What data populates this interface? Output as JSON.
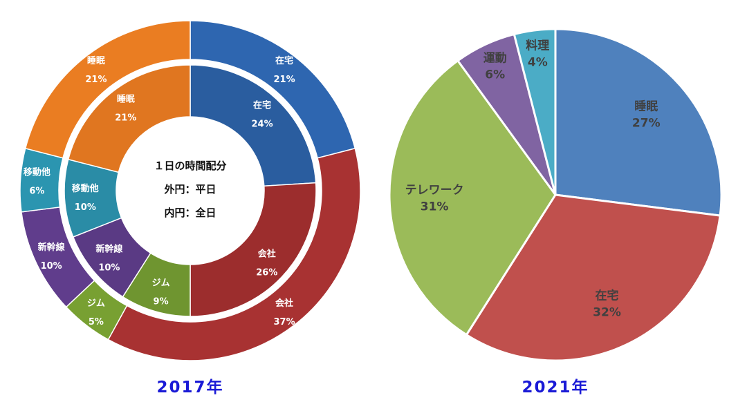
{
  "chart_data": [
    {
      "type": "pie",
      "variant": "nested-donut",
      "title": "2017年",
      "center_text": [
        "１日の時間配分",
        "外円：平日",
        "内円：全日"
      ],
      "rings": [
        {
          "name": "外円：平日",
          "slices": [
            {
              "label": "在宅",
              "value": 21,
              "value_label": "21%",
              "color": "#2e66b0"
            },
            {
              "label": "会社",
              "value": 37,
              "value_label": "37%",
              "color": "#a83232"
            },
            {
              "label": "ジム",
              "value": 5,
              "value_label": "5%",
              "color": "#78a032"
            },
            {
              "label": "新幹線",
              "value": 10,
              "value_label": "10%",
              "color": "#603d8c"
            },
            {
              "label": "移動他",
              "value": 6,
              "value_label": "6%",
              "color": "#2b95b0"
            },
            {
              "label": "睡眠",
              "value": 21,
              "value_label": "21%",
              "color": "#ea7d22"
            }
          ]
        },
        {
          "name": "内円：全日",
          "slices": [
            {
              "label": "在宅",
              "value": 24,
              "value_label": "24%",
              "color": "#2a5d9f"
            },
            {
              "label": "会社",
              "value": 26,
              "value_label": "26%",
              "color": "#9c2d2d"
            },
            {
              "label": "ジム",
              "value": 9,
              "value_label": "9%",
              "color": "#6f9530"
            },
            {
              "label": "新幹線",
              "value": 10,
              "value_label": "10%",
              "color": "#5a3a84"
            },
            {
              "label": "移動他",
              "value": 10,
              "value_label": "10%",
              "color": "#2a8ca6"
            },
            {
              "label": "睡眠",
              "value": 21,
              "value_label": "21%",
              "color": "#e07620"
            }
          ]
        }
      ]
    },
    {
      "type": "pie",
      "title": "2021年",
      "slices": [
        {
          "label": "睡眠",
          "value": 27,
          "value_label": "27%",
          "color": "#4f81bd"
        },
        {
          "label": "在宅",
          "value": 32,
          "value_label": "32%",
          "color": "#c0504d"
        },
        {
          "label": "テレワーク",
          "value": 31,
          "value_label": "31%",
          "color": "#9bbb59"
        },
        {
          "label": "運動",
          "value": 6,
          "value_label": "6%",
          "color": "#8064a2"
        },
        {
          "label": "料理",
          "value": 4,
          "value_label": "4%",
          "color": "#4bacc6"
        }
      ]
    }
  ]
}
